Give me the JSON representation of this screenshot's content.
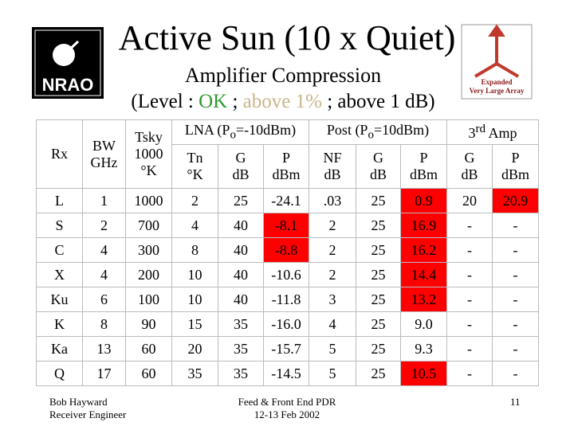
{
  "header": {
    "title": "Active Sun (10 x Quiet)",
    "subtitle": "Amplifier Compression",
    "legend": {
      "open": "(Level : ",
      "ok": "OK",
      "sep": " ; ",
      "pct": "above 1%",
      "db": " ; above 1 dB)"
    }
  },
  "logos": {
    "left": "NRAO",
    "right_1": "Expanded",
    "right_2": "Very Large Array"
  },
  "table": {
    "groups": {
      "lna_a": "LNA (P",
      "lna_sub": "o",
      "lna_b": "=-10dBm)",
      "post_a": "Post (P",
      "post_sub": "o",
      "post_b": "=10dBm)",
      "amp_a": "3",
      "amp_sup": "rd",
      "amp_b": " Amp"
    },
    "fixed": {
      "rx": "Rx",
      "bw_1": "BW",
      "bw_2": "GHz",
      "tsky_1": "Tsky",
      "tsky_2": "1000",
      "tsky_3": "°K"
    },
    "sub": [
      [
        "Tn",
        "°K"
      ],
      [
        "G",
        "dB"
      ],
      [
        "P",
        "dBm"
      ],
      [
        "NF",
        "dB"
      ],
      [
        "G",
        "dB"
      ],
      [
        "P",
        "dBm"
      ],
      [
        "G",
        "dB"
      ],
      [
        "P",
        "dBm"
      ]
    ],
    "rows": [
      [
        "L",
        "1",
        "1000",
        "2",
        "25",
        "-24.1",
        ".03",
        "25",
        "0.9",
        "20",
        "20.9"
      ],
      [
        "S",
        "2",
        "700",
        "4",
        "40",
        "-8.1",
        "2",
        "25",
        "16.9",
        "-",
        "-"
      ],
      [
        "C",
        "4",
        "300",
        "8",
        "40",
        "-8.8",
        "2",
        "25",
        "16.2",
        "-",
        "-"
      ],
      [
        "X",
        "4",
        "200",
        "10",
        "40",
        "-10.6",
        "2",
        "25",
        "14.4",
        "-",
        "-"
      ],
      [
        "Ku",
        "6",
        "100",
        "10",
        "40",
        "-11.8",
        "3",
        "25",
        "13.2",
        "-",
        "-"
      ],
      [
        "K",
        "8",
        "90",
        "15",
        "35",
        "-16.0",
        "4",
        "25",
        "9.0",
        "-",
        "-"
      ],
      [
        "Ka",
        "13",
        "60",
        "20",
        "35",
        "-15.7",
        "5",
        "25",
        "9.3",
        "-",
        "-"
      ],
      [
        "Q",
        "17",
        "60",
        "35",
        "35",
        "-14.5",
        "5",
        "25",
        "10.5",
        "-",
        "-"
      ]
    ]
  },
  "footer": {
    "author_1": "Bob Hayward",
    "author_2": "Receiver Engineer",
    "event_1": "Feed & Front End PDR",
    "event_2": "12-13 Feb 2002",
    "page": "11"
  }
}
